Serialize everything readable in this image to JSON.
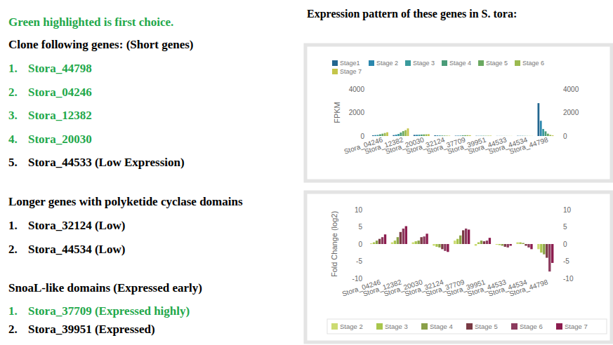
{
  "document": {
    "note": {
      "text": "Green highlighted is first choice.",
      "color": "#22a84a"
    },
    "sections": [
      {
        "heading": "Clone following genes: (Short genes)",
        "items": [
          {
            "number": "1.",
            "text": "Stora_44798",
            "color": "#22a84a"
          },
          {
            "number": "2.",
            "text": "Stora_04246",
            "color": "#22a84a"
          },
          {
            "number": "3.",
            "text": "Stora_12382",
            "color": "#22a84a"
          },
          {
            "number": "4.",
            "text": "Stora_20030",
            "color": "#22a84a"
          },
          {
            "number": "5.",
            "text": "Stora_44533 (Low Expression)",
            "color": "#000000"
          }
        ]
      },
      {
        "heading": "Longer genes with polyketide cyclase domains",
        "items": [
          {
            "number": "1.",
            "text": "Stora_32124 (Low)",
            "color": "#000000"
          },
          {
            "number": "2.",
            "text": "Stora_44534 (Low)",
            "color": "#000000"
          }
        ]
      },
      {
        "heading": "SnoaL-like domains (Expressed early)",
        "items": [
          {
            "number": "1.",
            "text": "Stora_37709 (Expressed highly)",
            "color": "#22a84a"
          },
          {
            "number": "2.",
            "text": "Stora_39951 (Expressed)",
            "color": "#000000"
          }
        ]
      }
    ],
    "figure_title": "Expression pattern of these genes in S. tora:"
  },
  "chart_data": [
    {
      "type": "bar",
      "y_label": "FPKM",
      "categories": [
        "Stora_04246",
        "Stora_12382",
        "Stora_20030",
        "Stora_32124",
        "Stora_37709",
        "Stora_39951",
        "Stora_44533",
        "Stora_44534",
        "Stora_44798"
      ],
      "series": [
        {
          "name": "Stage1",
          "color": "#23668f",
          "values": [
            60,
            80,
            100,
            60,
            30,
            20,
            10,
            20,
            2800
          ]
        },
        {
          "name": "Stage 2",
          "color": "#2b87ad",
          "values": [
            80,
            120,
            110,
            55,
            35,
            20,
            10,
            20,
            1300
          ]
        },
        {
          "name": "Stage 3",
          "color": "#3a9a9c",
          "values": [
            100,
            180,
            120,
            50,
            40,
            25,
            10,
            20,
            600
          ]
        },
        {
          "name": "Stage 4",
          "color": "#4a9b78",
          "values": [
            150,
            300,
            130,
            45,
            60,
            25,
            8,
            15,
            400
          ]
        },
        {
          "name": "Stage 5",
          "color": "#6aa860",
          "values": [
            200,
            420,
            140,
            40,
            70,
            25,
            8,
            12,
            200
          ]
        },
        {
          "name": "Stage 6",
          "color": "#9bba50",
          "values": [
            260,
            500,
            150,
            35,
            75,
            30,
            7,
            10,
            100
          ]
        },
        {
          "name": "Stage 7",
          "color": "#c4c54a",
          "values": [
            320,
            650,
            160,
            30,
            70,
            35,
            8,
            8,
            60
          ]
        }
      ],
      "ylim": [
        0,
        4000
      ],
      "yticks": [
        0,
        2000,
        4000
      ],
      "y2lim": [
        0,
        4000
      ],
      "y2ticks": [
        0,
        2000,
        4000
      ],
      "grid": false,
      "legend": "top-left"
    },
    {
      "type": "bar",
      "y_label": "Fold Change (log2)",
      "categories": [
        "Stora_04246",
        "Stora_12382",
        "Stora_20030",
        "Stora_32124",
        "Stora_37709",
        "Stora_39951",
        "Stora_44533",
        "Stora_44534",
        "Stora_44798"
      ],
      "series": [
        {
          "name": "Stage 2",
          "color": "#ccdb72",
          "values": [
            0.2,
            0.5,
            0.5,
            -0.5,
            1,
            -0.5,
            -0.2,
            0.5,
            -1.5
          ]
        },
        {
          "name": "Stage 3",
          "color": "#a8c64c",
          "values": [
            0.5,
            1,
            0.8,
            -0.8,
            1.5,
            0.5,
            -0.3,
            0.5,
            -2.5
          ]
        },
        {
          "name": "Stage 4",
          "color": "#8aa048",
          "values": [
            1,
            2,
            1,
            -1,
            2.5,
            1,
            -0.5,
            0.3,
            -3
          ]
        },
        {
          "name": "Stage 5",
          "color": "#7a3a44",
          "values": [
            1.5,
            3.5,
            2,
            -1.5,
            4,
            0.8,
            -0.8,
            -0.5,
            -4
          ]
        },
        {
          "name": "Stage 6",
          "color": "#8c3b5e",
          "values": [
            2,
            4.5,
            2.2,
            -2,
            4.5,
            1,
            -1,
            -1,
            -8
          ]
        },
        {
          "name": "Stage 7",
          "color": "#8c1c4e",
          "values": [
            2.8,
            5.2,
            3,
            -2.3,
            4.2,
            1.8,
            -0.5,
            -1.5,
            -5.5
          ]
        }
      ],
      "ylim": [
        -10,
        10
      ],
      "yticks": [
        -10,
        -5,
        0,
        5,
        10
      ],
      "y2lim": [
        -10,
        10
      ],
      "y2ticks": [
        -10,
        -5,
        0,
        5,
        10
      ],
      "grid": false,
      "legend": "bottom"
    }
  ]
}
